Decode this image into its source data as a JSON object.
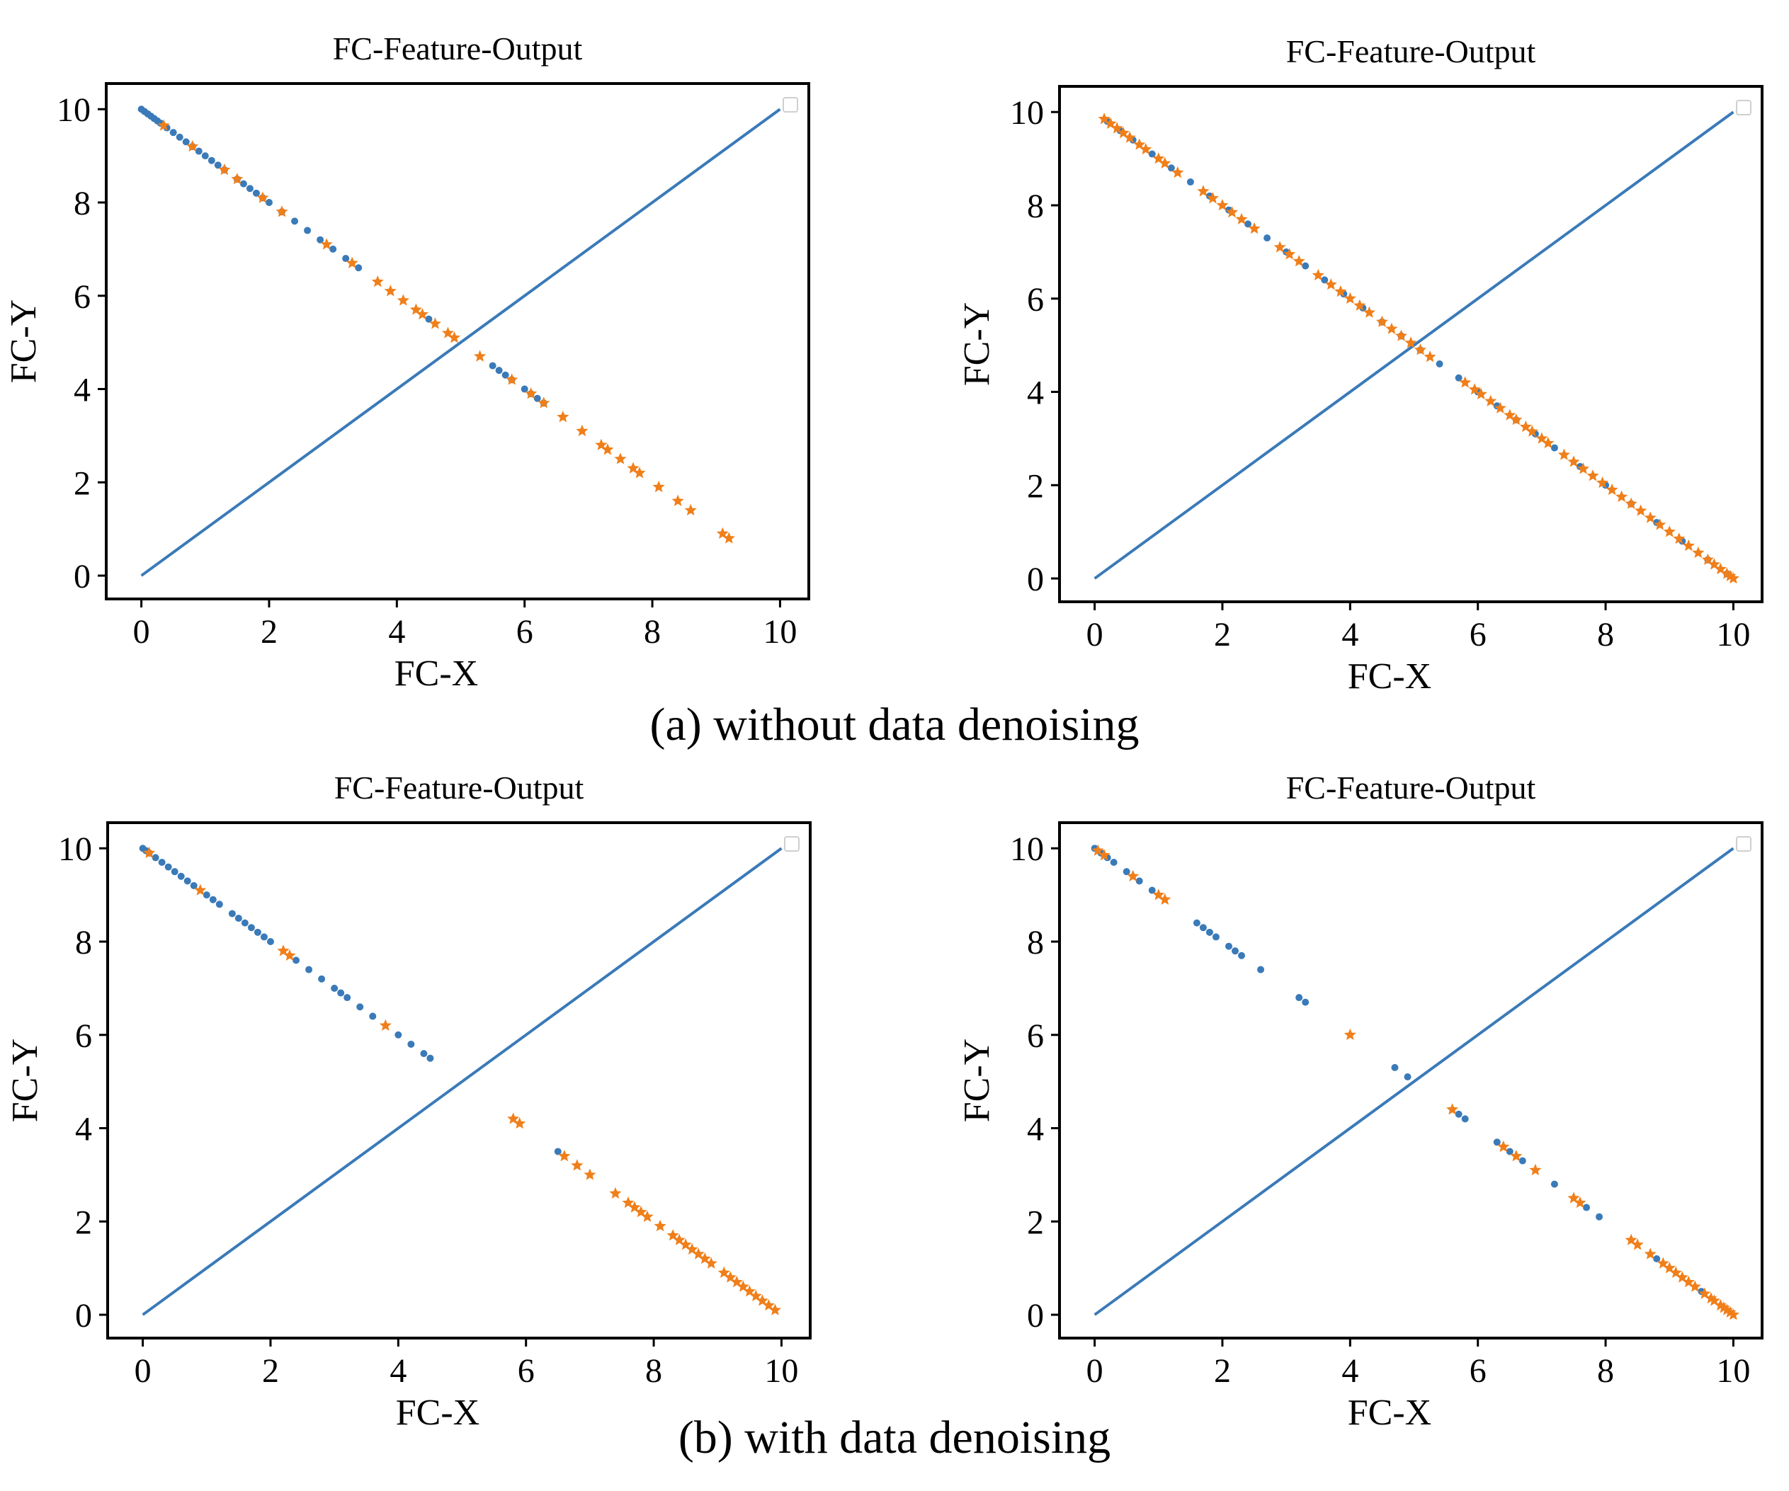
{
  "figure": {
    "caption_a": "(a) without data denoising",
    "caption_b": "(b) with data denoising"
  },
  "colors": {
    "blue": "#3a7ab8",
    "orange": "#f07f1a",
    "axis": "#000000"
  },
  "chart_data": [
    {
      "type": "scatter",
      "id": "a-left",
      "title": "FC-Feature-Output",
      "xlabel": "FC-X",
      "ylabel": "FC-Y",
      "xlim": [
        -0.55,
        10.45
      ],
      "ylim": [
        -0.5,
        10.55
      ],
      "xticks": [
        0,
        2,
        4,
        6,
        8,
        10
      ],
      "yticks": [
        0,
        2,
        4,
        6,
        8,
        10
      ],
      "legend": "top-right (empty)",
      "reference_line": {
        "from": [
          0,
          0
        ],
        "to": [
          10,
          10
        ]
      },
      "series": [
        {
          "name": "blue",
          "marker": "dot",
          "x": [
            0.0,
            0.05,
            0.1,
            0.15,
            0.2,
            0.25,
            0.3,
            0.4,
            0.5,
            0.6,
            0.7,
            0.8,
            0.9,
            1.0,
            1.1,
            1.2,
            1.3,
            1.5,
            1.6,
            1.7,
            1.8,
            1.9,
            2.0,
            2.2,
            2.4,
            2.6,
            2.8,
            3.0,
            3.2,
            3.4,
            4.5,
            5.5,
            5.6,
            5.7,
            5.8,
            6.0,
            6.1,
            6.2,
            6.3
          ]
        },
        {
          "name": "orange",
          "marker": "star",
          "x": [
            0.35,
            0.8,
            1.3,
            1.5,
            1.9,
            2.2,
            2.9,
            3.3,
            3.7,
            3.9,
            4.1,
            4.3,
            4.4,
            4.6,
            4.8,
            4.9,
            5.3,
            5.8,
            6.1,
            6.3,
            6.6,
            6.9,
            7.2,
            7.3,
            7.5,
            7.7,
            7.8,
            8.1,
            8.4,
            8.6,
            9.1,
            9.2
          ]
        }
      ]
    },
    {
      "type": "scatter",
      "id": "a-right",
      "title": "FC-Feature-Output",
      "xlabel": "FC-X",
      "ylabel": "FC-Y",
      "xlim": [
        -0.55,
        10.45
      ],
      "ylim": [
        -0.5,
        10.55
      ],
      "xticks": [
        0,
        2,
        4,
        6,
        8,
        10
      ],
      "yticks": [
        0,
        2,
        4,
        6,
        8,
        10
      ],
      "legend": "top-right (empty)",
      "reference_line": {
        "from": [
          0,
          0
        ],
        "to": [
          10,
          10
        ]
      },
      "series": [
        {
          "name": "blue",
          "marker": "dot",
          "x": [
            0.2,
            0.4,
            0.6,
            0.9,
            1.2,
            1.5,
            1.8,
            2.1,
            2.4,
            2.7,
            3.0,
            3.3,
            3.6,
            3.9,
            4.2,
            4.5,
            4.8,
            5.1,
            5.4,
            5.7,
            6.0,
            6.3,
            6.6,
            6.9,
            7.2,
            7.6,
            8.0,
            8.4,
            8.8,
            9.2,
            9.6,
            9.9
          ]
        },
        {
          "name": "orange",
          "marker": "star",
          "x": [
            0.15,
            0.25,
            0.35,
            0.45,
            0.55,
            0.7,
            0.8,
            1.0,
            1.1,
            1.3,
            1.7,
            1.85,
            2.0,
            2.15,
            2.3,
            2.5,
            2.9,
            3.05,
            3.2,
            3.5,
            3.7,
            3.85,
            4.0,
            4.15,
            4.3,
            4.5,
            4.65,
            4.8,
            4.95,
            5.1,
            5.25,
            5.8,
            5.95,
            6.05,
            6.2,
            6.35,
            6.5,
            6.6,
            6.75,
            6.85,
            7.0,
            7.1,
            7.35,
            7.5,
            7.65,
            7.8,
            7.95,
            8.1,
            8.25,
            8.4,
            8.55,
            8.7,
            8.85,
            9.0,
            9.15,
            9.3,
            9.45,
            9.6,
            9.7,
            9.8,
            9.9,
            9.95,
            10.0
          ]
        }
      ]
    },
    {
      "type": "scatter",
      "id": "b-left",
      "title": "FC-Feature-Output",
      "xlabel": "FC-X",
      "ylabel": "FC-Y",
      "xlim": [
        -0.55,
        10.45
      ],
      "ylim": [
        -0.5,
        10.55
      ],
      "xticks": [
        0,
        2,
        4,
        6,
        8,
        10
      ],
      "yticks": [
        0,
        2,
        4,
        6,
        8,
        10
      ],
      "legend": "top-right (empty)",
      "reference_line": {
        "from": [
          0,
          0
        ],
        "to": [
          10,
          10
        ]
      },
      "series": [
        {
          "name": "blue",
          "marker": "dot",
          "x": [
            0.0,
            0.05,
            0.1,
            0.2,
            0.3,
            0.4,
            0.5,
            0.6,
            0.7,
            0.8,
            1.0,
            1.1,
            1.2,
            1.4,
            1.5,
            1.6,
            1.7,
            1.8,
            1.9,
            2.0,
            2.4,
            2.6,
            2.8,
            3.0,
            3.1,
            3.2,
            3.4,
            3.6,
            4.0,
            4.2,
            4.4,
            4.5,
            6.5
          ]
        },
        {
          "name": "orange",
          "marker": "star",
          "x": [
            0.1,
            0.9,
            2.2,
            2.3,
            3.8,
            5.8,
            5.9,
            6.6,
            6.8,
            7.0,
            7.4,
            7.6,
            7.7,
            7.8,
            7.9,
            8.1,
            8.3,
            8.4,
            8.5,
            8.6,
            8.7,
            8.8,
            8.9,
            9.1,
            9.2,
            9.3,
            9.4,
            9.5,
            9.6,
            9.7,
            9.8,
            9.9
          ]
        }
      ]
    },
    {
      "type": "scatter",
      "id": "b-right",
      "title": "FC-Feature-Output",
      "xlabel": "FC-X",
      "ylabel": "FC-Y",
      "xlim": [
        -0.55,
        10.45
      ],
      "ylim": [
        -0.5,
        10.55
      ],
      "xticks": [
        0,
        2,
        4,
        6,
        8,
        10
      ],
      "yticks": [
        0,
        2,
        4,
        6,
        8,
        10
      ],
      "legend": "top-right (empty)",
      "reference_line": {
        "from": [
          0,
          0
        ],
        "to": [
          10,
          10
        ]
      },
      "series": [
        {
          "name": "blue",
          "marker": "dot",
          "x": [
            0.0,
            0.1,
            0.2,
            0.3,
            0.5,
            0.7,
            0.9,
            1.6,
            1.7,
            1.8,
            1.9,
            2.1,
            2.2,
            2.3,
            2.6,
            3.2,
            3.3,
            4.7,
            4.9,
            5.7,
            5.8,
            6.3,
            6.5,
            6.7,
            7.2,
            7.7,
            7.9,
            8.8,
            9.5
          ]
        },
        {
          "name": "orange",
          "marker": "star",
          "x": [
            0.05,
            0.15,
            0.6,
            1.0,
            1.1,
            4.0,
            5.6,
            6.4,
            6.6,
            6.9,
            7.5,
            7.6,
            8.4,
            8.5,
            8.7,
            8.9,
            9.0,
            9.1,
            9.2,
            9.3,
            9.4,
            9.55,
            9.65,
            9.7,
            9.8,
            9.85,
            9.9,
            9.95,
            10.0
          ]
        }
      ]
    }
  ]
}
